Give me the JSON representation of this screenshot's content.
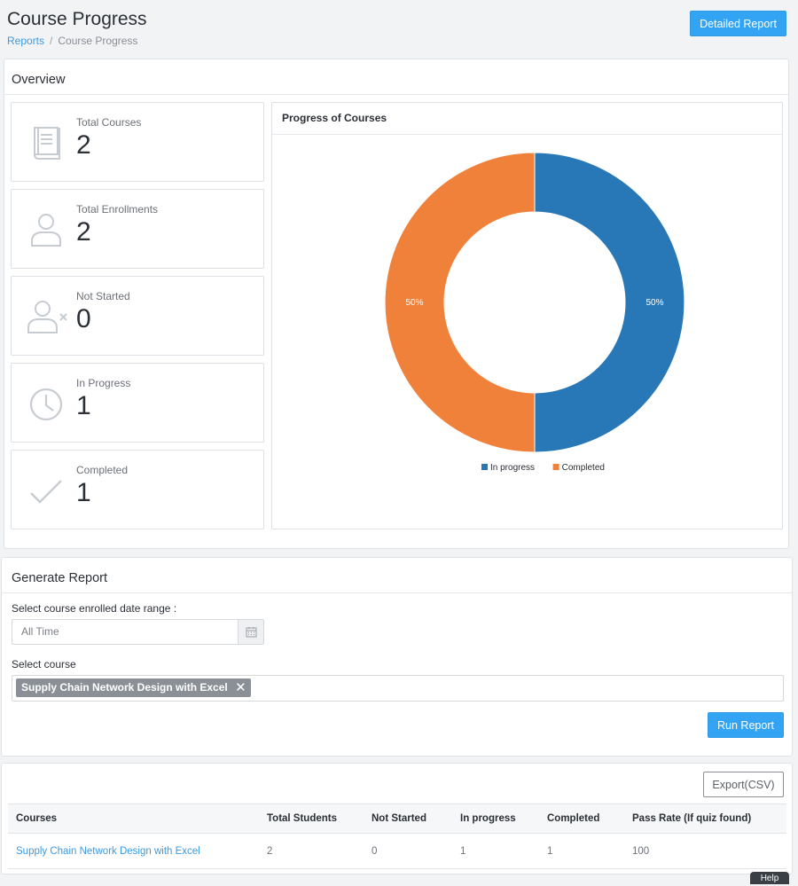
{
  "header": {
    "title": "Course Progress",
    "breadcrumb": {
      "parent": "Reports",
      "current": "Course Progress"
    },
    "detailed_report_label": "Detailed Report"
  },
  "overview": {
    "title": "Overview",
    "stats": [
      {
        "label": "Total Courses",
        "value": "2",
        "icon": "book-icon"
      },
      {
        "label": "Total Enrollments",
        "value": "2",
        "icon": "user-icon"
      },
      {
        "label": "Not Started",
        "value": "0",
        "icon": "user-x-icon"
      },
      {
        "label": "In Progress",
        "value": "1",
        "icon": "clock-icon"
      },
      {
        "label": "Completed",
        "value": "1",
        "icon": "check-icon"
      }
    ]
  },
  "chart_data": {
    "type": "pie",
    "title": "Progress of Courses",
    "donut": true,
    "categories": [
      "In progress",
      "Completed"
    ],
    "values": [
      50,
      50
    ],
    "data_labels": [
      "50%",
      "50%"
    ],
    "colors": [
      "#2878b7",
      "#f0813a"
    ],
    "legend_position": "bottom"
  },
  "generate_report": {
    "title": "Generate Report",
    "date_range_label": "Select course enrolled date range :",
    "date_range_value": "All Time",
    "course_label": "Select course",
    "selected_course": "Supply Chain Network Design with Excel",
    "run_button_label": "Run Report"
  },
  "results": {
    "export_label": "Export(CSV)",
    "columns": [
      "Courses",
      "Total Students",
      "Not Started",
      "In progress",
      "Completed",
      "Pass Rate (If quiz found)"
    ],
    "rows": [
      [
        "Supply Chain Network Design with Excel",
        "2",
        "0",
        "1",
        "1",
        "100"
      ]
    ]
  },
  "help_label": "Help"
}
